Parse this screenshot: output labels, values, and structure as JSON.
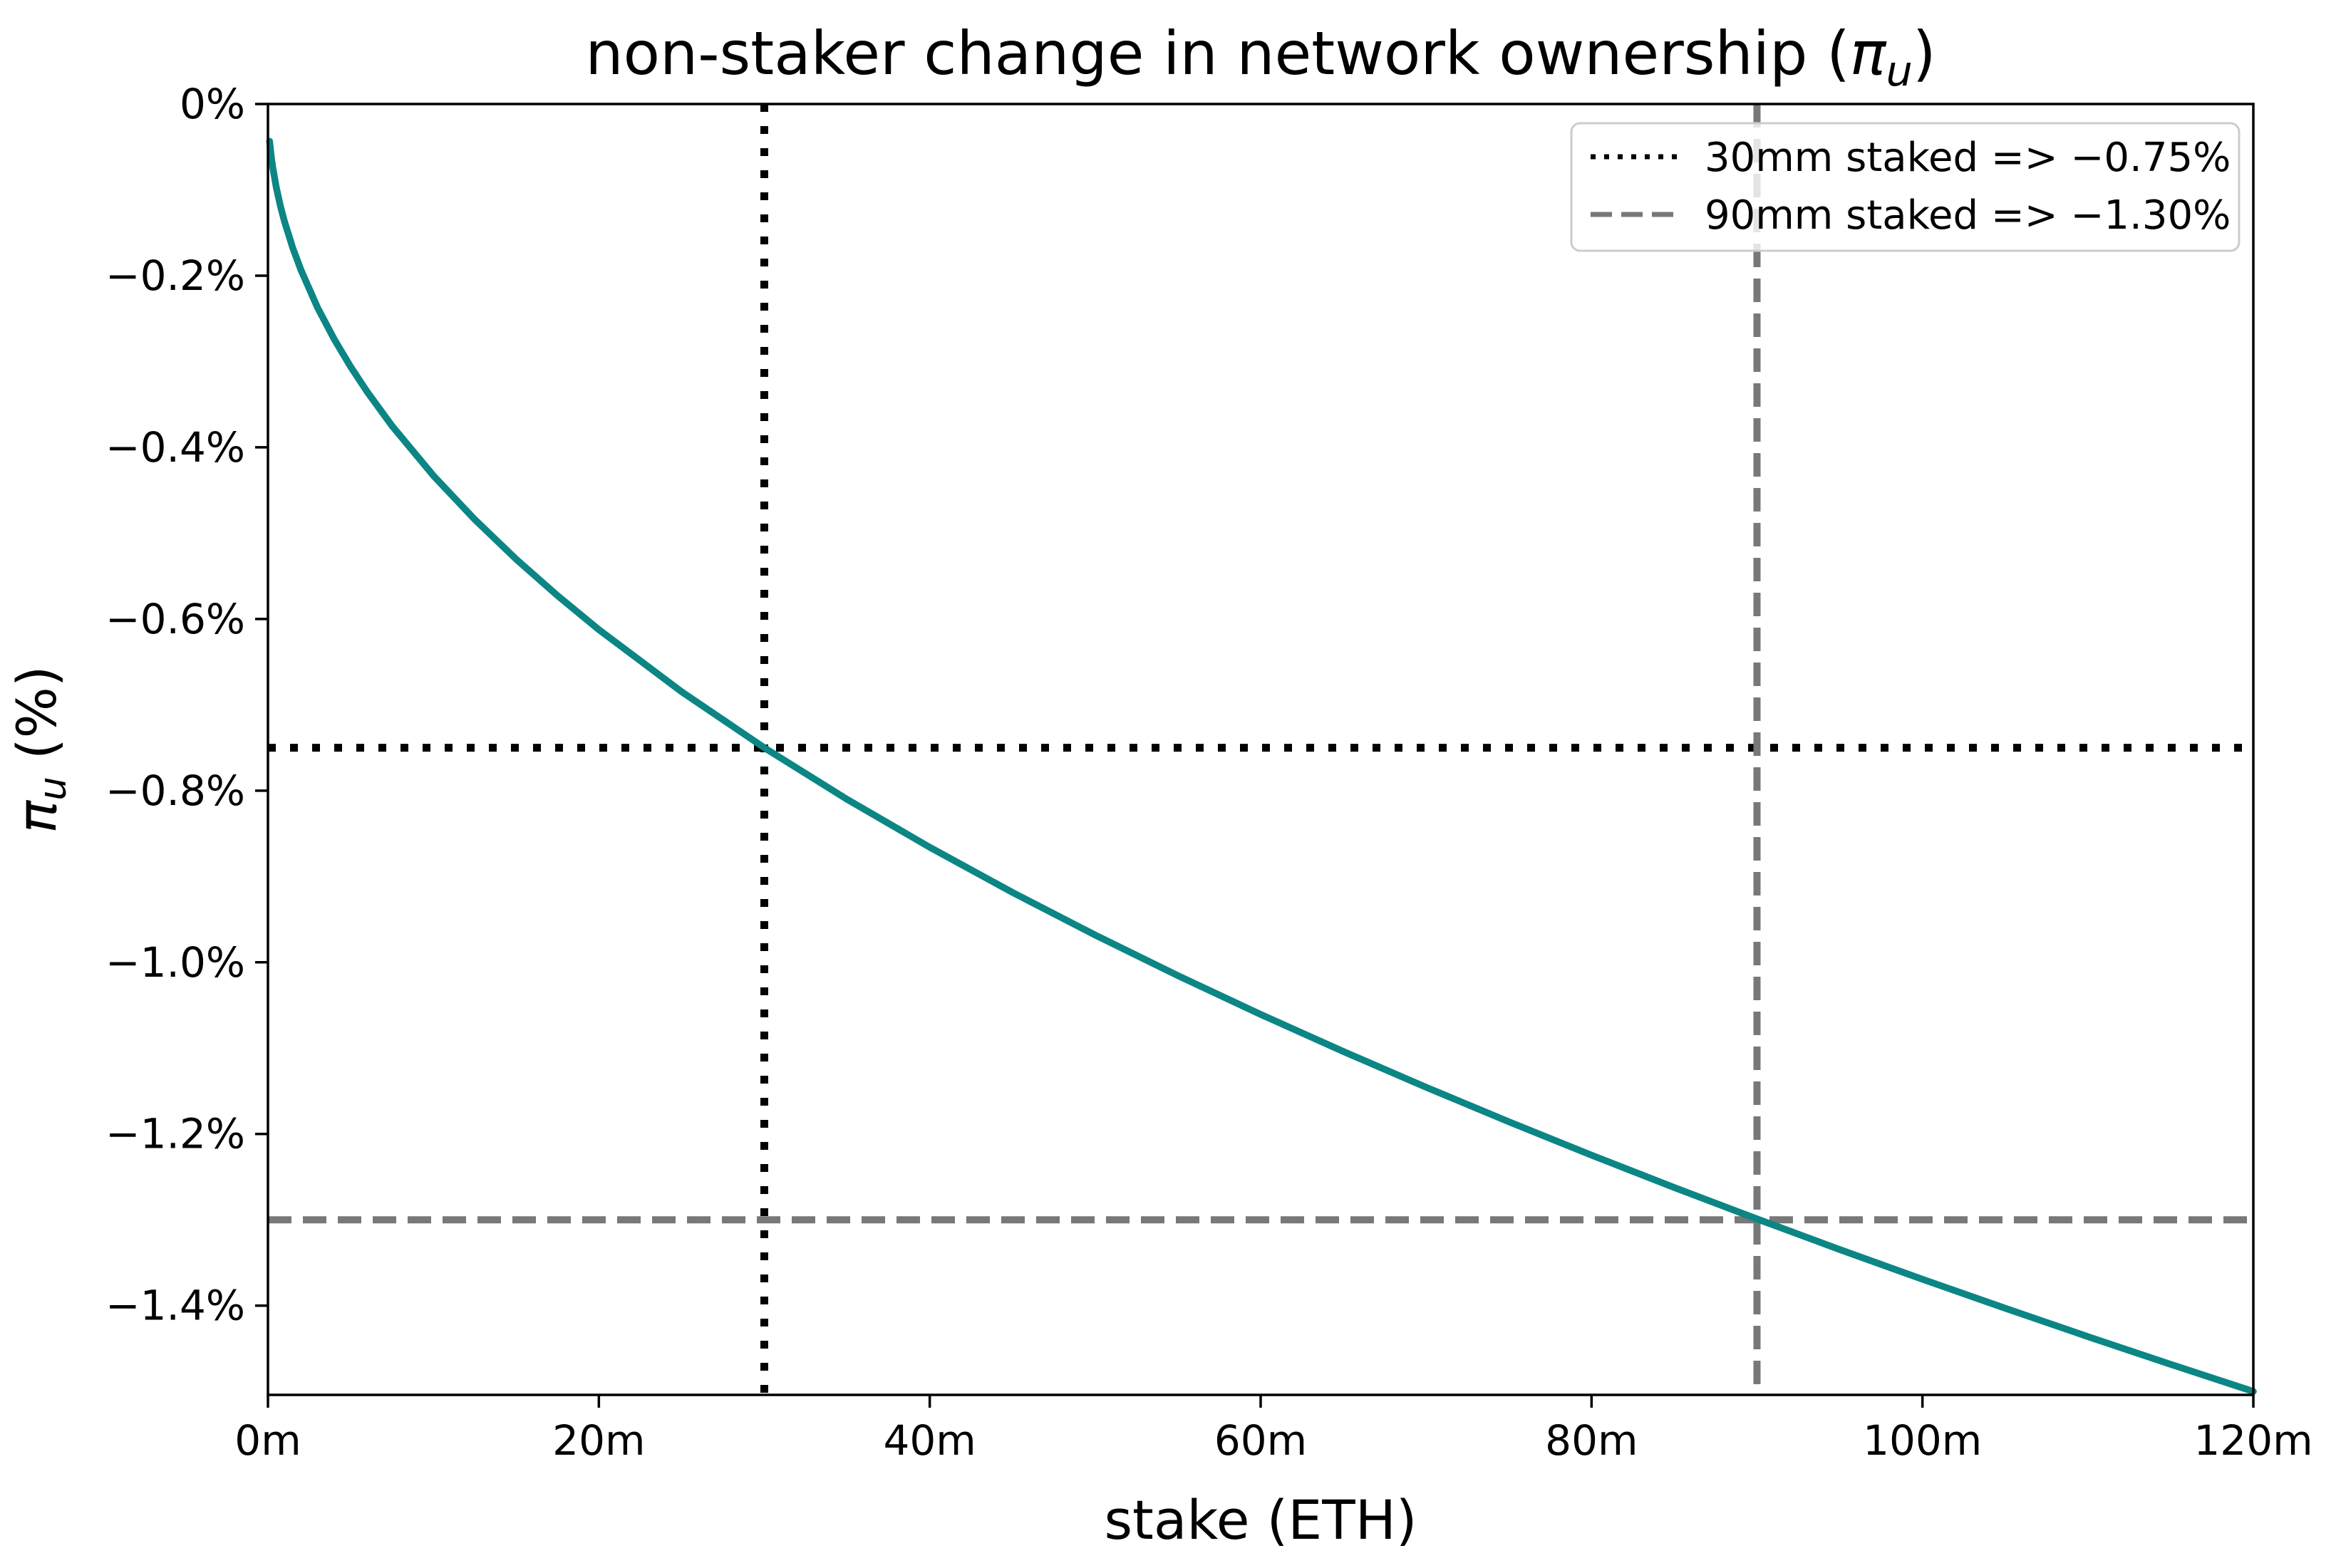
{
  "figure": {
    "title_prefix": "non-staker change in network ownership (",
    "title_symbol": "π",
    "title_subscript": "u",
    "title_suffix": ")",
    "xlabel": "stake (ETH)",
    "ylabel_symbol": "π",
    "ylabel_subscript": "u",
    "ylabel_suffix": " (%)"
  },
  "chart_data": {
    "type": "line",
    "title": "non-staker change in network ownership (π_u)",
    "xlabel": "stake (ETH)",
    "ylabel": "π_u (%)",
    "x_unit": "millions of ETH staked",
    "xlim": [
      0,
      120
    ],
    "ylim": [
      -1.504,
      0
    ],
    "grid": false,
    "legend_position": "upper right",
    "x_ticks": [
      0,
      20,
      40,
      60,
      80,
      100,
      120
    ],
    "x_tick_labels": [
      "0m",
      "20m",
      "40m",
      "60m",
      "80m",
      "100m",
      "120m"
    ],
    "y_ticks": [
      0,
      -0.2,
      -0.4,
      -0.6,
      -0.8,
      -1.0,
      -1.2,
      -1.4
    ],
    "y_tick_labels": [
      "0%",
      "−0.2%",
      "−0.4%",
      "−0.6%",
      "−0.8%",
      "−1.0%",
      "−1.2%",
      "−1.4%"
    ],
    "series": [
      {
        "name": "non-staker change in network ownership",
        "color": "#0b8684",
        "style": "solid",
        "x": [
          0.1,
          0.2,
          0.3,
          0.5,
          0.75,
          1,
          1.5,
          2,
          3,
          4,
          5,
          6,
          7.5,
          10,
          12.5,
          15,
          17.5,
          20,
          25,
          30,
          35,
          40,
          45,
          50,
          55,
          60,
          65,
          70,
          75,
          80,
          85,
          90,
          95,
          100,
          105,
          110,
          115,
          120
        ],
        "y": [
          -0.0433,
          -0.0612,
          -0.075,
          -0.0968,
          -0.1186,
          -0.1369,
          -0.1677,
          -0.1936,
          -0.2372,
          -0.2739,
          -0.3062,
          -0.3354,
          -0.375,
          -0.433,
          -0.4841,
          -0.5303,
          -0.5728,
          -0.6124,
          -0.6847,
          -0.75,
          -0.8101,
          -0.866,
          -0.9186,
          -0.9682,
          -1.0155,
          -1.0607,
          -1.1039,
          -1.1456,
          -1.1858,
          -1.2247,
          -1.2624,
          -1.299,
          -1.3347,
          -1.3693,
          -1.4031,
          -1.4361,
          -1.4684,
          -1.5
        ]
      }
    ],
    "annotations": [
      {
        "label": "30mm staked => −0.75%",
        "style": "dotted",
        "color": "#000000",
        "x": 30,
        "y": -0.75
      },
      {
        "label": "90mm staked => −1.30%",
        "style": "dashed",
        "color": "#787878",
        "x": 90,
        "y": -1.3
      }
    ]
  }
}
